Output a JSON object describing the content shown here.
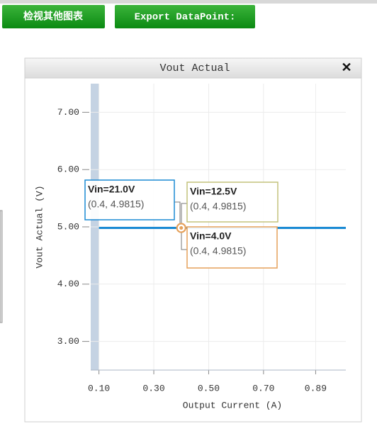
{
  "buttons": [
    "检视其他图表",
    "Export DataPoint:"
  ],
  "dialog": {
    "title": "Vout Actual",
    "close": "✕"
  },
  "chart_data": {
    "type": "line",
    "x_label": "Output Current (A)",
    "y_label": "Vout Actual (V)",
    "x": [
      0.1,
      0.4,
      1.0
    ],
    "series": [
      {
        "name": "Vin=21.0V",
        "color": "#1a8ad4",
        "values": [
          4.9815,
          4.9815,
          4.9815
        ],
        "value_labels": [
          null,
          "(0.4, 4.9815)",
          null
        ]
      },
      {
        "name": "Vin=12.5V",
        "color": "#c3c27c",
        "values": [
          4.9815,
          4.9815,
          4.9815
        ],
        "value_labels": [
          null,
          "(0.4, 4.9815)",
          null
        ]
      },
      {
        "name": "Vin=4.0V",
        "color": "#e6a15a",
        "values": [
          4.9815,
          4.9815,
          4.9815
        ],
        "value_labels": [
          null,
          "(0.4, 4.9815)",
          null
        ]
      }
    ],
    "xlim": [
      0.07,
      1.0
    ],
    "xticks": [
      {
        "value": 0.1,
        "label": "0.10"
      },
      {
        "value": 0.3,
        "label": "0.30"
      },
      {
        "value": 0.5,
        "label": "0.50"
      },
      {
        "value": 0.7,
        "label": "0.70"
      },
      0.89
    ],
    "ylim": [
      2.5,
      7.5
    ],
    "yticks": [
      {
        "value": 3,
        "label": "3.00"
      },
      {
        "value": 4,
        "label": "4.00"
      },
      {
        "value": 5,
        "label": "5.00"
      },
      {
        "value": 6,
        "label": "6.00"
      },
      {
        "value": 7,
        "label": "7.00"
      }
    ],
    "grid": true
  }
}
